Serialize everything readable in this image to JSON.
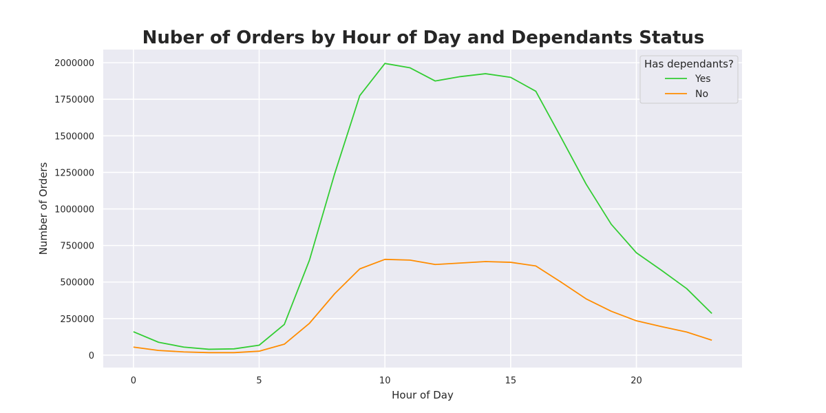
{
  "chart_data": {
    "type": "line",
    "title": "Nuber of Orders by Hour of Day and Dependants Status",
    "xlabel": "Hour of Day",
    "ylabel": "Number of Orders",
    "xlim": [
      -1.2,
      24.2
    ],
    "ylim": [
      -85000,
      2090000
    ],
    "xticks": [
      0,
      5,
      10,
      15,
      20
    ],
    "yticks": [
      0,
      250000,
      500000,
      750000,
      1000000,
      1250000,
      1500000,
      1750000,
      2000000
    ],
    "grid": true,
    "background": "#eaeaf2",
    "grid_color": "#ffffff",
    "x": [
      0,
      1,
      2,
      3,
      4,
      5,
      6,
      7,
      8,
      9,
      10,
      11,
      12,
      13,
      14,
      15,
      16,
      17,
      18,
      19,
      20,
      21,
      22,
      23
    ],
    "legend": {
      "title": "Has dependants?",
      "position": "top-right"
    },
    "series": [
      {
        "name": "Yes",
        "color": "#32cd32",
        "values": [
          160000,
          88000,
          55000,
          40000,
          43000,
          68000,
          210000,
          650000,
          1240000,
          1775000,
          1995000,
          1965000,
          1875000,
          1905000,
          1925000,
          1900000,
          1805000,
          1490000,
          1170000,
          895000,
          700000,
          580000,
          455000,
          285000
        ]
      },
      {
        "name": "No",
        "color": "#ff8c00",
        "values": [
          55000,
          32000,
          22000,
          17000,
          17000,
          27000,
          75000,
          218000,
          420000,
          590000,
          655000,
          650000,
          620000,
          630000,
          640000,
          635000,
          610000,
          500000,
          385000,
          300000,
          235000,
          195000,
          158000,
          102000
        ]
      }
    ]
  }
}
